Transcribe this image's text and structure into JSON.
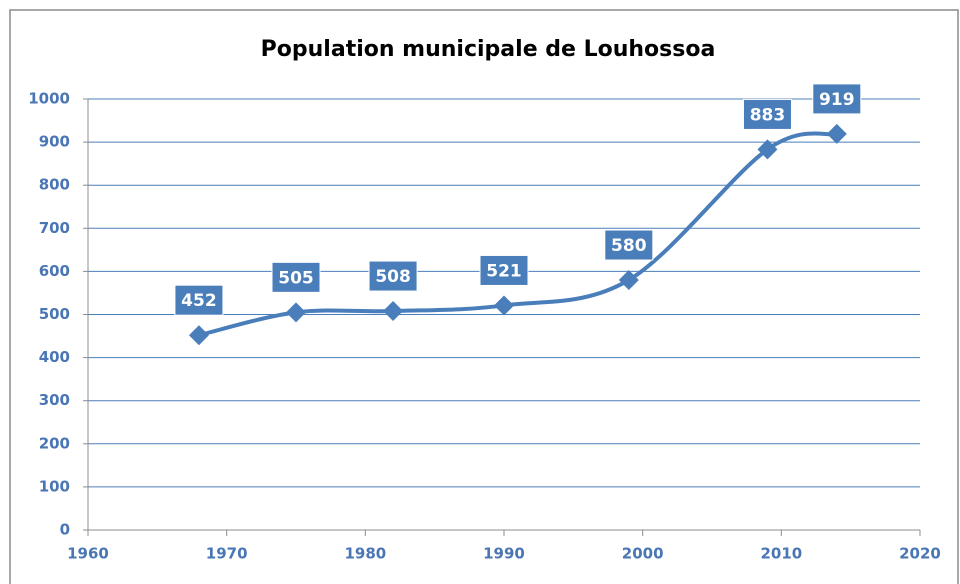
{
  "chart_data": {
    "type": "line",
    "title": "Population municipale de Louhossoa",
    "x": [
      1968,
      1975,
      1982,
      1990,
      1999,
      2009,
      2014
    ],
    "values": [
      452,
      505,
      508,
      521,
      580,
      883,
      919
    ],
    "color": "#4a7ebb",
    "xlim": [
      1960,
      2020
    ],
    "xticks": [
      1960,
      1970,
      1980,
      1990,
      2000,
      2010,
      2020
    ],
    "ylim": [
      0,
      1000
    ],
    "yticks": [
      0,
      100,
      200,
      300,
      400,
      500,
      600,
      700,
      800,
      900,
      1000
    ],
    "grid": true
  }
}
